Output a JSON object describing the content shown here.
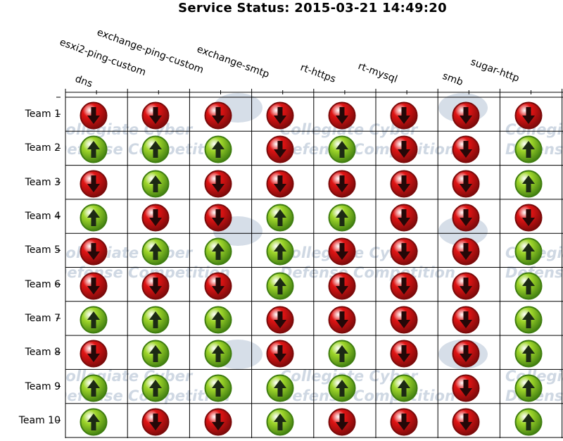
{
  "title": "Service Status: 2015-03-21 14:49:20",
  "columns": [
    "dns",
    "esxi2-ping-custom",
    "exchange-ping-custom",
    "exchange-smtp",
    "rt-https",
    "rt-mysql",
    "smb",
    "sugar-http"
  ],
  "rows": [
    {
      "team": "Team 1",
      "status": [
        "down",
        "down",
        "down",
        "down",
        "down",
        "down",
        "down",
        "down"
      ]
    },
    {
      "team": "Team 2",
      "status": [
        "up",
        "up",
        "up",
        "down",
        "up",
        "down",
        "down",
        "up"
      ]
    },
    {
      "team": "Team 3",
      "status": [
        "down",
        "up",
        "down",
        "down",
        "down",
        "down",
        "down",
        "up"
      ]
    },
    {
      "team": "Team 4",
      "status": [
        "up",
        "down",
        "down",
        "up",
        "up",
        "down",
        "down",
        "down"
      ]
    },
    {
      "team": "Team 5",
      "status": [
        "down",
        "up",
        "up",
        "up",
        "down",
        "down",
        "down",
        "up"
      ]
    },
    {
      "team": "Team 6",
      "status": [
        "down",
        "down",
        "down",
        "up",
        "down",
        "down",
        "down",
        "up"
      ]
    },
    {
      "team": "Team 7",
      "status": [
        "up",
        "up",
        "up",
        "down",
        "down",
        "down",
        "down",
        "up"
      ]
    },
    {
      "team": "Team 8",
      "status": [
        "down",
        "up",
        "up",
        "down",
        "up",
        "down",
        "down",
        "up"
      ]
    },
    {
      "team": "Team 9",
      "status": [
        "up",
        "up",
        "up",
        "up",
        "up",
        "up",
        "down",
        "up"
      ]
    },
    {
      "team": "Team 10",
      "status": [
        "up",
        "down",
        "down",
        "up",
        "down",
        "down",
        "down",
        "up"
      ]
    }
  ],
  "watermark": {
    "line1": "Collegiate Cyber",
    "line2": "Defense Competition"
  },
  "colors": {
    "up_fill": "#9fd62a",
    "up_border": "#3f7d10",
    "down_fill": "#e01414",
    "down_border": "#7a0a0a"
  },
  "icons": {
    "up": "arrow-up-icon",
    "down": "arrow-down-icon"
  }
}
